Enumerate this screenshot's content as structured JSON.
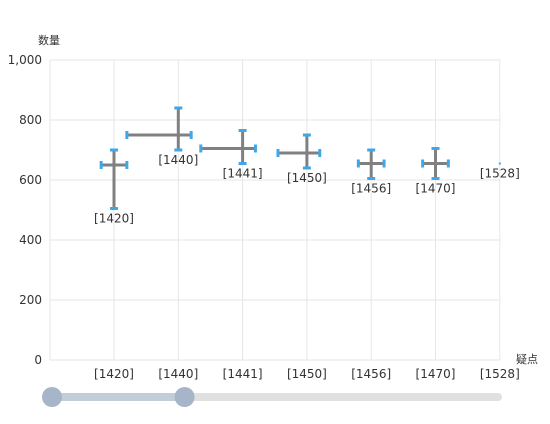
{
  "chart_data": {
    "type": "scatter",
    "subtype": "error-cross",
    "ylabel": "数量",
    "xlabel": "疑点",
    "ylim": [
      0,
      1000
    ],
    "yticks": [
      0,
      200,
      400,
      600,
      800,
      1000
    ],
    "ytick_labels": [
      "0",
      "200",
      "400",
      "600",
      "800",
      "1,000"
    ],
    "categories": [
      "[1420]",
      "[1440]",
      "[1441]",
      "[1450]",
      "[1456]",
      "[1470]",
      "[1528]"
    ],
    "points": [
      {
        "label": "[1420]",
        "x": 0,
        "y": 650,
        "x_low": -0.2,
        "x_high": 0.2,
        "y_low": 505,
        "y_high": 700
      },
      {
        "label": "[1440]",
        "x": 1,
        "y": 750,
        "x_low": 0.2,
        "x_high": 1.2,
        "y_low": 700,
        "y_high": 840
      },
      {
        "label": "[1441]",
        "x": 2,
        "y": 705,
        "x_low": 1.35,
        "x_high": 2.2,
        "y_low": 655,
        "y_high": 765
      },
      {
        "label": "[1450]",
        "x": 3,
        "y": 690,
        "x_low": 2.55,
        "x_high": 3.2,
        "y_low": 640,
        "y_high": 750
      },
      {
        "label": "[1456]",
        "x": 4,
        "y": 655,
        "x_low": 3.8,
        "x_high": 4.2,
        "y_low": 605,
        "y_high": 700
      },
      {
        "label": "[1470]",
        "x": 5,
        "y": 655,
        "x_low": 4.8,
        "x_high": 5.2,
        "y_low": 605,
        "y_high": 705
      },
      {
        "label": "[1528]",
        "x": 6,
        "y": 655,
        "x_low": 6,
        "x_high": 6,
        "y_low": 655,
        "y_high": 655
      }
    ],
    "grid": true,
    "colors": {
      "cross": "#808080",
      "caps": "#3fa7e8",
      "grid": "#e6e6e6",
      "axis_text": "#333333",
      "slider_track": "#e0e0e0",
      "slider_fill": "#c3ccd9",
      "slider_handle": "#a7b5c9"
    }
  },
  "slider": {
    "range": [
      0,
      2
    ]
  }
}
